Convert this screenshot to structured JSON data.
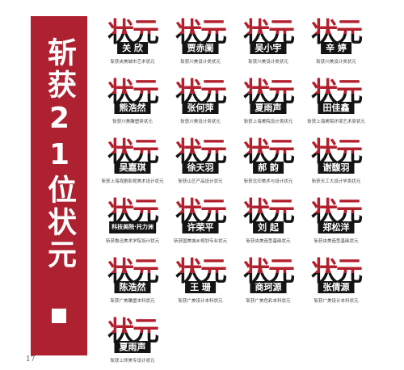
{
  "banner": {
    "title": "斩获21位状元",
    "colors": {
      "background": "#ae2131",
      "text": "#ffffff"
    }
  },
  "page_number": "17",
  "cards": [
    {
      "big": "状元",
      "name": "关 欣",
      "school": "斩获央美城市艺术状元"
    },
    {
      "big": "状元",
      "name": "贾赤阑",
      "school": "斩获川美设计类状元"
    },
    {
      "big": "状元",
      "name": "吴小宇",
      "school": "斩获川美设计类状元"
    },
    {
      "big": "状元",
      "name": "辛 婷",
      "school": "斩获川美设计类状元"
    },
    {
      "big": "状元",
      "name": "熊浩然",
      "school": "斩获川美雕塑类状元"
    },
    {
      "big": "状元",
      "name": "张何萍",
      "school": "斩获川美设计类状元"
    },
    {
      "big": "状元",
      "name": "夏雨声",
      "school": "斩获上海美院设计类状元"
    },
    {
      "big": "状元",
      "name": "田佳鑫",
      "school": "斩获上海美院环境艺术类状元"
    },
    {
      "big": "状元",
      "name": "吴嘉琪",
      "school": "斩获上海戏剧影视美术设计状元"
    },
    {
      "big": "状元",
      "name": "徐天羽",
      "school": "斩获山艺产品设计状元"
    },
    {
      "big": "状元",
      "name": "郝 韵",
      "school": "斩获北印美术与设计状元"
    },
    {
      "big": "状元",
      "name": "谢馥羽",
      "school": "斩获天工大设计学类状元"
    },
    {
      "big": "状元",
      "name": "科技美院·托力洲",
      "school": "斩获鲁迅美术学院设计状元"
    },
    {
      "big": "状元",
      "name": "许荣平",
      "school": "斩获国美城乡规划专业状元"
    },
    {
      "big": "状元",
      "name": "刘 起",
      "school": "斩获央美造型基础状元"
    },
    {
      "big": "状元",
      "name": "郑松洋",
      "school": "斩获央美造型基础状元"
    },
    {
      "big": "状元",
      "name": "陈浩然",
      "school": "斩获广美雕塑本科状元"
    },
    {
      "big": "状元",
      "name": "王 珊",
      "school": "斩获广美设计本科状元"
    },
    {
      "big": "状元",
      "name": "商珂源",
      "school": "斩获广美色彩本科状元"
    },
    {
      "big": "状元",
      "name": "张倩源",
      "school": "斩获广美设计本科状元"
    },
    {
      "big": "状元",
      "name": "夏雨声",
      "school": "斩获上师美专设计状元"
    }
  ]
}
